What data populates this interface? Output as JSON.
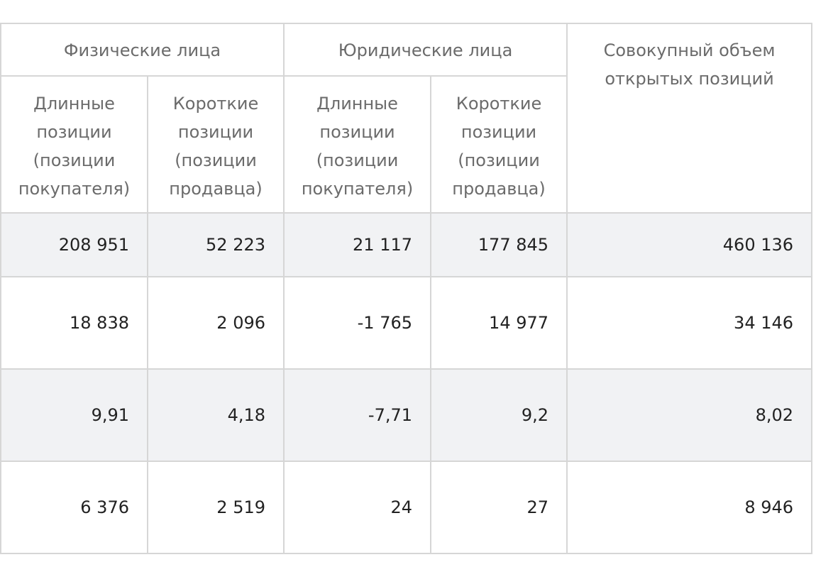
{
  "table": {
    "header_groups": [
      "Физические лица",
      "Юридические лица",
      "Совокупный объем открытых позиций"
    ],
    "subheaders": [
      "Длинные позиции (позиции покупателя)",
      "Короткие позиции (позиции продавца)",
      "Длинные позиции (позиции покупателя)",
      "Короткие позиции (позиции продавца)"
    ],
    "rows": [
      [
        "208 951",
        "52 223",
        "21 117",
        "177 845",
        "460 136"
      ],
      [
        "18 838",
        "2 096",
        "-1 765",
        "14 977",
        "34 146"
      ],
      [
        "9,91",
        "4,18",
        "-7,71",
        "9,2",
        "8,02"
      ],
      [
        "6 376",
        "2 519",
        "24",
        "27",
        "8 946"
      ]
    ]
  }
}
